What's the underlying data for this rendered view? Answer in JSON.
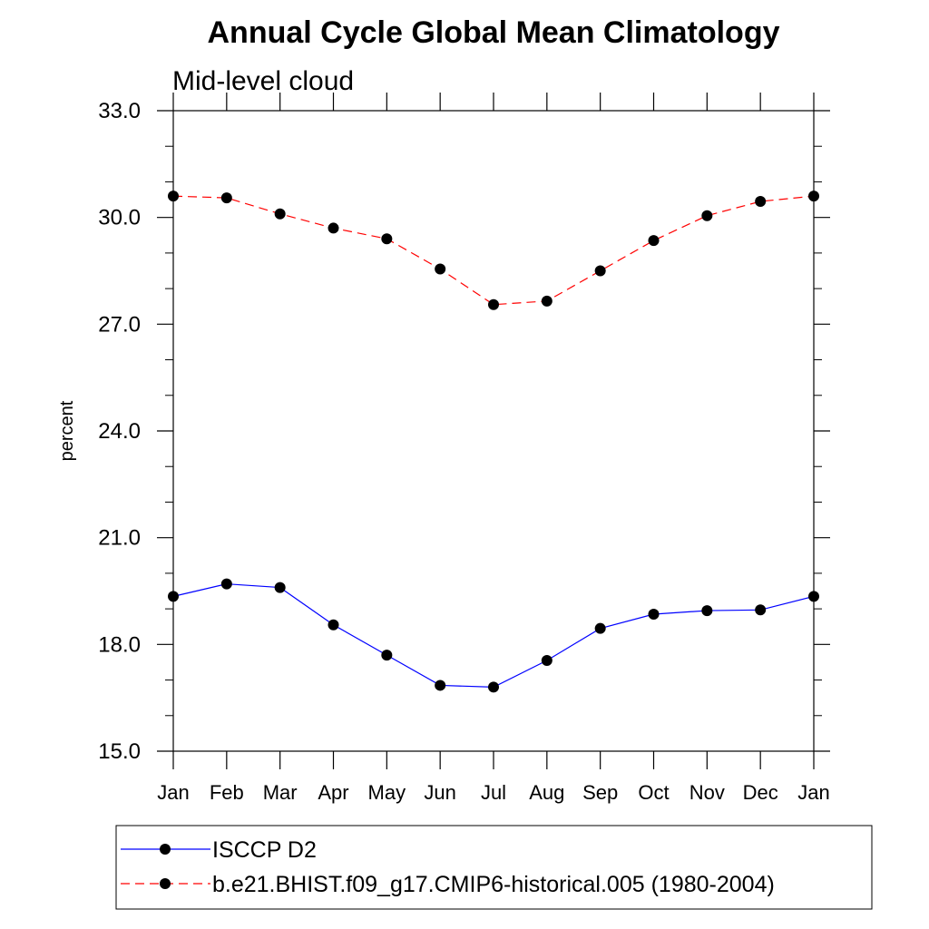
{
  "chart_data": {
    "type": "line",
    "title": "Annual Cycle Global Mean Climatology",
    "subtitle": "Mid-level cloud",
    "xlabel": "",
    "ylabel": "percent",
    "categories": [
      "Jan",
      "Feb",
      "Mar",
      "Apr",
      "May",
      "Jun",
      "Jul",
      "Aug",
      "Sep",
      "Oct",
      "Nov",
      "Dec",
      "Jan"
    ],
    "ylim": [
      15.0,
      33.0
    ],
    "yticks": [
      "15.0",
      "18.0",
      "21.0",
      "24.0",
      "27.0",
      "30.0",
      "33.0"
    ],
    "grid": false,
    "legend_position": "bottom",
    "series": [
      {
        "name": "ISCCP D2",
        "color": "#0000ff",
        "dash": "solid",
        "marker": "filled-circle",
        "values": [
          19.35,
          19.7,
          19.6,
          18.55,
          17.7,
          16.85,
          16.8,
          17.55,
          18.45,
          18.85,
          18.95,
          18.97,
          19.35
        ]
      },
      {
        "name": "b.e21.BHIST.f09_g17.CMIP6-historical.005 (1980-2004)",
        "color": "#ff0000",
        "dash": "dashed",
        "marker": "filled-circle",
        "values": [
          30.6,
          30.55,
          30.1,
          29.7,
          29.4,
          28.55,
          27.55,
          27.65,
          28.5,
          29.35,
          30.05,
          30.45,
          30.6
        ]
      }
    ]
  }
}
